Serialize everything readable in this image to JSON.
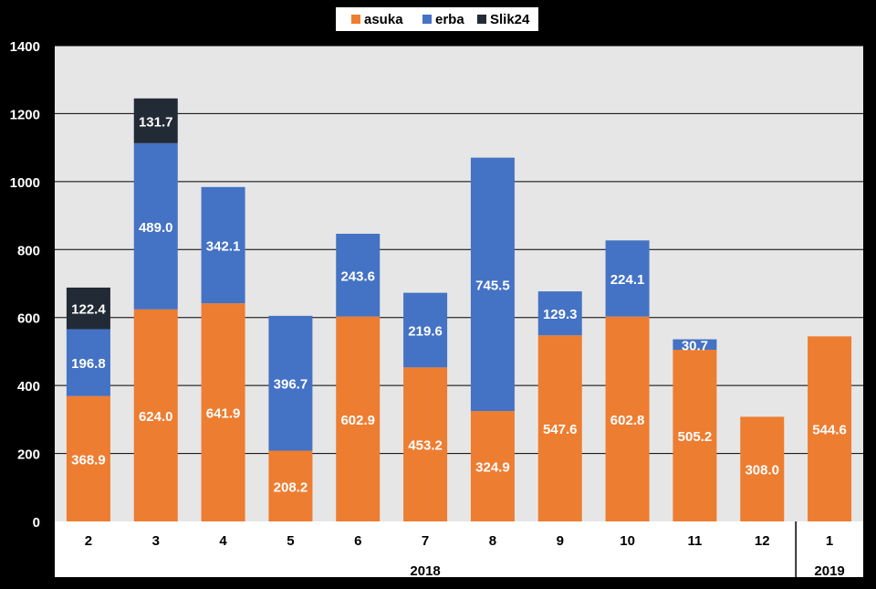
{
  "chart_data": {
    "type": "bar",
    "stacked": true,
    "categories": [
      "2",
      "3",
      "4",
      "5",
      "6",
      "7",
      "8",
      "9",
      "10",
      "11",
      "12",
      "1"
    ],
    "groups": [
      {
        "label": "2018",
        "categories": [
          "2",
          "3",
          "4",
          "5",
          "6",
          "7",
          "8",
          "9",
          "10",
          "11",
          "12"
        ]
      },
      {
        "label": "2019",
        "categories": [
          "1"
        ]
      }
    ],
    "series": [
      {
        "name": "asuka",
        "color": "#ED7D31",
        "values": [
          368.9,
          624.0,
          641.9,
          208.2,
          602.9,
          453.2,
          324.9,
          547.6,
          602.8,
          505.2,
          308.0,
          544.6
        ]
      },
      {
        "name": "erba",
        "color": "#4472C4",
        "values": [
          196.8,
          489.0,
          342.1,
          396.7,
          243.6,
          219.6,
          745.5,
          129.3,
          224.1,
          30.7,
          null,
          null
        ]
      },
      {
        "name": "Slik24",
        "color": "#222A35",
        "values": [
          122.4,
          131.7,
          null,
          null,
          null,
          null,
          null,
          null,
          null,
          null,
          null,
          null
        ]
      }
    ],
    "data_labels": [
      [
        "368.9",
        "624.0",
        "641.9",
        "208.2",
        "602.9",
        "453.2",
        "324.9",
        "547.6",
        "602.8",
        "505.2",
        "308.0",
        "544.6"
      ],
      [
        "196.8",
        "489.0",
        "342.1",
        "396.7",
        "243.6",
        "219.6",
        "745.5",
        "129.3",
        "224.1",
        "30.7",
        null,
        null
      ],
      [
        "122.4",
        "131.7",
        null,
        null,
        null,
        null,
        null,
        null,
        null,
        null,
        null,
        null
      ]
    ],
    "yticks": [
      "0",
      "200",
      "400",
      "600",
      "800",
      "1000",
      "1200",
      "1400"
    ],
    "ylim": [
      0,
      1400
    ],
    "grid": true,
    "legend_position": "top"
  }
}
